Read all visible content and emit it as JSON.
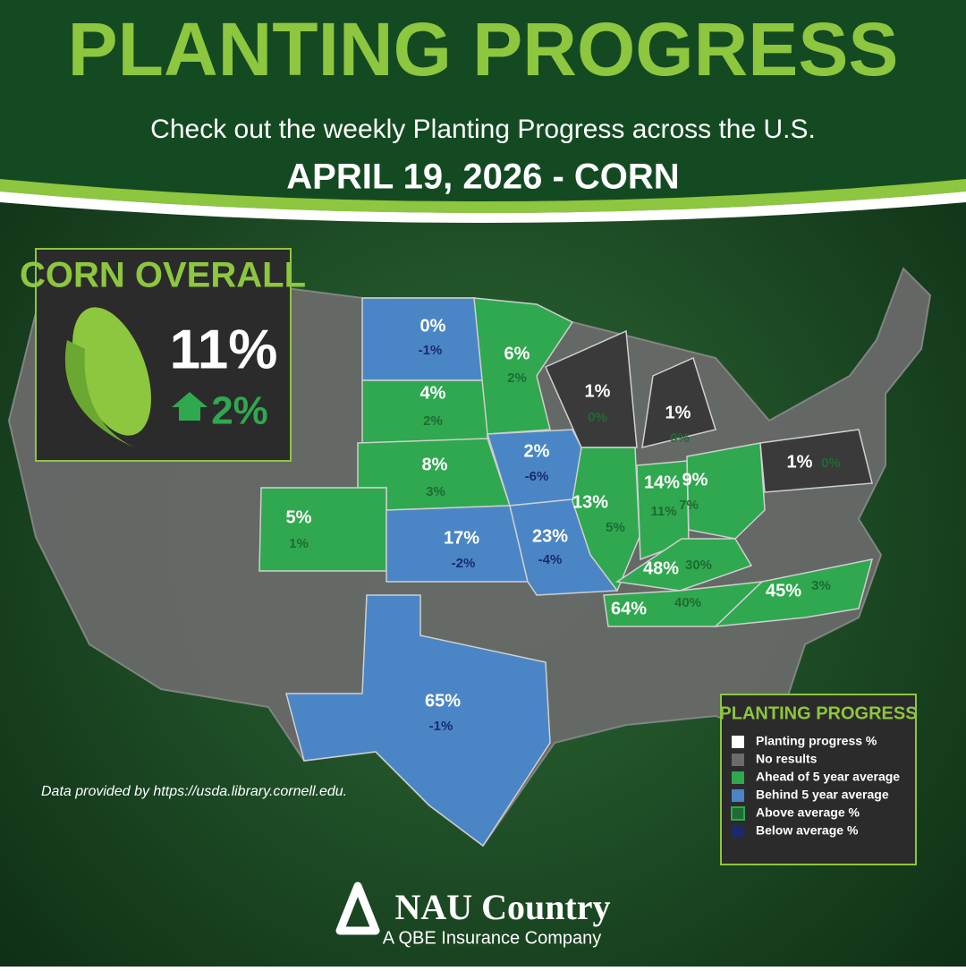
{
  "header": {
    "title": "PLANTING PROGRESS",
    "subtitle": "Check out the weekly Planting Progress across the U.S.",
    "date": "APRIL 19, 2026 - CORN"
  },
  "overall": {
    "title": "CORN OVERALL",
    "progress": "11%",
    "change": "2%"
  },
  "states": [
    {
      "progress": "0%",
      "change": "-1%",
      "color": "#4a86c5"
    },
    {
      "progress": "4%",
      "change": "2%",
      "color": "#2fa84f"
    },
    {
      "progress": "8%",
      "change": "3%",
      "color": "#2fa84f"
    },
    {
      "progress": "5%",
      "change": "1%",
      "color": "#2fa84f"
    },
    {
      "progress": "17%",
      "change": "-2%",
      "color": "#4a86c5"
    },
    {
      "progress": "6%",
      "change": "2%",
      "color": "#2fa84f"
    },
    {
      "progress": "2%",
      "change": "-6%",
      "color": "#4a86c5"
    },
    {
      "progress": "23%",
      "change": "-4%",
      "color": "#4a86c5"
    },
    {
      "progress": "1%",
      "change": "0%",
      "color": "#3a3a3a"
    },
    {
      "progress": "1%",
      "change": "0%",
      "color": "#3a3a3a"
    },
    {
      "progress": "13%",
      "change": "5%",
      "color": "#2fa84f"
    },
    {
      "progress": "14%",
      "change": "11%",
      "color": "#2fa84f"
    },
    {
      "progress": "9%",
      "change": "7%",
      "color": "#2fa84f"
    },
    {
      "progress": "48%",
      "change": "30%",
      "color": "#2fa84f"
    },
    {
      "progress": "64%",
      "change": "40%",
      "color": "#2fa84f"
    },
    {
      "progress": "45%",
      "change": "3%",
      "color": "#2fa84f"
    },
    {
      "progress": "65%",
      "change": "-1%",
      "color": "#4a86c5"
    },
    {
      "progress": "1%",
      "change": "0%",
      "color": "#3a3a3a"
    }
  ],
  "legend": {
    "title": "PLANTING PROGRESS",
    "items": [
      {
        "label": "Planting progress %",
        "color": "#ffffff"
      },
      {
        "label": "No results",
        "color": "#6b6b6b"
      },
      {
        "label": "Ahead of 5 year average",
        "color": "#2fa84f"
      },
      {
        "label": "Behind 5 year average",
        "color": "#4a86c5"
      },
      {
        "label": "Above average %",
        "color": "#1e6b33"
      },
      {
        "label": "Below average %",
        "color": "#1c2a6b"
      }
    ]
  },
  "source": "Data provided by https://usda.library.cornell.edu.",
  "logo": {
    "name": "NAU Country",
    "tagline": "A QBE Insurance Company"
  }
}
